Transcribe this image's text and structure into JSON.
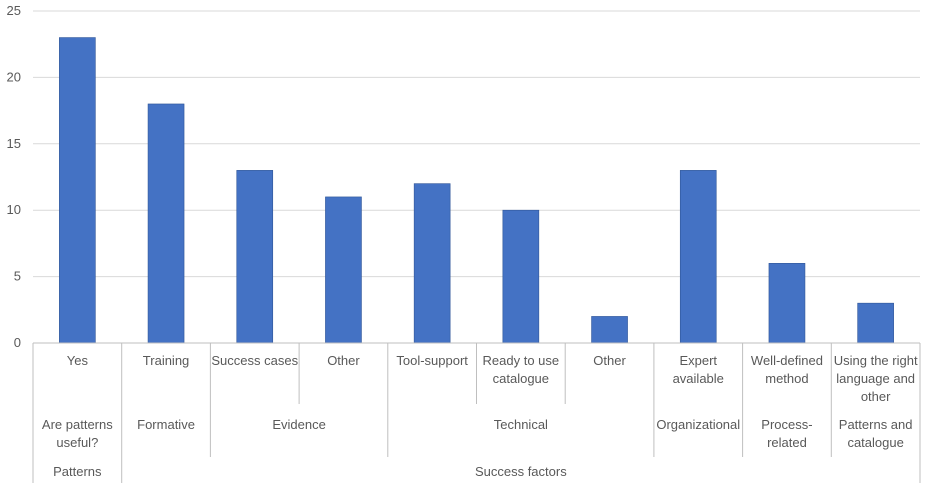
{
  "colors": {
    "bar": "#4472C4",
    "bar_edge": "#2F5597",
    "grid": "#D9D9D9",
    "axis": "#BFBFBF",
    "text": "#595959",
    "background": "#FFFFFF"
  },
  "chart_data": {
    "type": "bar",
    "title": "",
    "xlabel": "",
    "ylabel": "",
    "ylim": [
      0,
      25
    ],
    "yticks": [
      0,
      5,
      10,
      15,
      20,
      25
    ],
    "grid": true,
    "legend": "none",
    "categories": [
      {
        "label": [
          "Yes"
        ],
        "value": 23
      },
      {
        "label": [
          "Training"
        ],
        "value": 18
      },
      {
        "label": [
          "Success cases"
        ],
        "value": 13
      },
      {
        "label": [
          "Other"
        ],
        "value": 11
      },
      {
        "label": [
          "Tool-support"
        ],
        "value": 12
      },
      {
        "label": [
          "Ready to use",
          "catalogue"
        ],
        "value": 10
      },
      {
        "label": [
          "Other"
        ],
        "value": 2
      },
      {
        "label": [
          "Expert",
          "available"
        ],
        "value": 13
      },
      {
        "label": [
          "Well-defined",
          "method"
        ],
        "value": 6
      },
      {
        "label": [
          "Using the right",
          "language and",
          "other"
        ],
        "value": 3
      }
    ],
    "groups": [
      {
        "label": [
          "Are patterns",
          "useful?"
        ],
        "start": 0,
        "end": 0
      },
      {
        "label": [
          "Formative"
        ],
        "start": 1,
        "end": 1
      },
      {
        "label": [
          "Evidence"
        ],
        "start": 2,
        "end": 3
      },
      {
        "label": [
          "Technical"
        ],
        "start": 4,
        "end": 6
      },
      {
        "label": [
          "Organizational"
        ],
        "start": 7,
        "end": 7
      },
      {
        "label": [
          "Process-",
          "related"
        ],
        "start": 8,
        "end": 8
      },
      {
        "label": [
          "Patterns and",
          "catalogue"
        ],
        "start": 9,
        "end": 9
      }
    ],
    "top_groups": [
      {
        "label": "Patterns",
        "start": 0,
        "end": 0
      },
      {
        "label": "Success factors",
        "start": 1,
        "end": 9
      }
    ]
  }
}
